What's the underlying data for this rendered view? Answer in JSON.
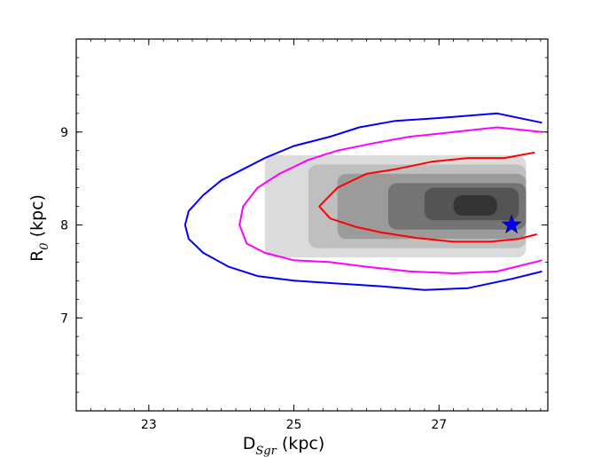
{
  "chart_data": {
    "type": "heatmap",
    "title": "",
    "xlabel": {
      "main": "D",
      "sub": "Sgr",
      "unit": " (kpc)"
    },
    "ylabel": {
      "main": "R",
      "sub": "0",
      "unit": " (kpc)"
    },
    "xlim": [
      22.0,
      28.5
    ],
    "ylim": [
      6.0,
      10.0
    ],
    "xticks": [
      23,
      25,
      27
    ],
    "yticks": [
      7,
      8,
      9
    ],
    "x_minor_step": 0.2,
    "y_minor_step": 0.2,
    "grid": false,
    "colormap": "greys",
    "density_cells": [
      {
        "x0": 24.6,
        "x1": 28.2,
        "y0": 7.65,
        "y1": 8.75,
        "level": 0.12
      },
      {
        "x0": 25.2,
        "x1": 28.2,
        "y0": 7.75,
        "y1": 8.65,
        "level": 0.25
      },
      {
        "x0": 25.6,
        "x1": 28.2,
        "y0": 7.85,
        "y1": 8.55,
        "level": 0.42
      },
      {
        "x0": 26.3,
        "x1": 28.2,
        "y0": 7.95,
        "y1": 8.45,
        "level": 0.6
      },
      {
        "x0": 26.8,
        "x1": 28.1,
        "y0": 8.05,
        "y1": 8.4,
        "level": 0.75
      },
      {
        "x0": 27.2,
        "x1": 27.8,
        "y0": 8.1,
        "y1": 8.32,
        "level": 0.9
      }
    ],
    "contours": [
      {
        "level": "outer",
        "color": "#0000ff",
        "points": [
          [
            28.42,
            9.1
          ],
          [
            27.8,
            9.2
          ],
          [
            27.0,
            9.15
          ],
          [
            26.4,
            9.12
          ],
          [
            25.9,
            9.05
          ],
          [
            25.5,
            8.95
          ],
          [
            25.0,
            8.85
          ],
          [
            24.6,
            8.72
          ],
          [
            24.3,
            8.6
          ],
          [
            24.0,
            8.48
          ],
          [
            23.75,
            8.32
          ],
          [
            23.55,
            8.15
          ],
          [
            23.5,
            8.0
          ],
          [
            23.55,
            7.85
          ],
          [
            23.75,
            7.7
          ],
          [
            24.1,
            7.55
          ],
          [
            24.5,
            7.45
          ],
          [
            25.0,
            7.4
          ],
          [
            25.6,
            7.37
          ],
          [
            26.2,
            7.34
          ],
          [
            26.8,
            7.3
          ],
          [
            27.4,
            7.32
          ],
          [
            28.0,
            7.42
          ],
          [
            28.42,
            7.5
          ]
        ]
      },
      {
        "level": "middle",
        "color": "#ff00ff",
        "points": [
          [
            28.42,
            9.0
          ],
          [
            27.8,
            9.05
          ],
          [
            27.2,
            9.0
          ],
          [
            26.6,
            8.95
          ],
          [
            26.1,
            8.88
          ],
          [
            25.6,
            8.8
          ],
          [
            25.2,
            8.7
          ],
          [
            24.8,
            8.55
          ],
          [
            24.5,
            8.4
          ],
          [
            24.3,
            8.2
          ],
          [
            24.25,
            8.0
          ],
          [
            24.35,
            7.8
          ],
          [
            24.6,
            7.7
          ],
          [
            25.0,
            7.62
          ],
          [
            25.5,
            7.6
          ],
          [
            26.0,
            7.55
          ],
          [
            26.6,
            7.5
          ],
          [
            27.2,
            7.48
          ],
          [
            27.8,
            7.5
          ],
          [
            28.42,
            7.62
          ]
        ]
      },
      {
        "level": "inner",
        "color": "#ff0000",
        "points": [
          [
            28.32,
            8.78
          ],
          [
            27.9,
            8.72
          ],
          [
            27.4,
            8.72
          ],
          [
            26.9,
            8.68
          ],
          [
            26.4,
            8.6
          ],
          [
            26.0,
            8.55
          ],
          [
            25.6,
            8.4
          ],
          [
            25.35,
            8.2
          ],
          [
            25.5,
            8.07
          ],
          [
            25.85,
            7.98
          ],
          [
            26.2,
            7.92
          ],
          [
            26.7,
            7.86
          ],
          [
            27.2,
            7.82
          ],
          [
            27.7,
            7.82
          ],
          [
            28.1,
            7.85
          ],
          [
            28.35,
            7.9
          ]
        ]
      }
    ],
    "marker": {
      "shape": "star",
      "x": 28.0,
      "y": 8.0,
      "color": "#0000ff"
    },
    "legend": "none"
  }
}
